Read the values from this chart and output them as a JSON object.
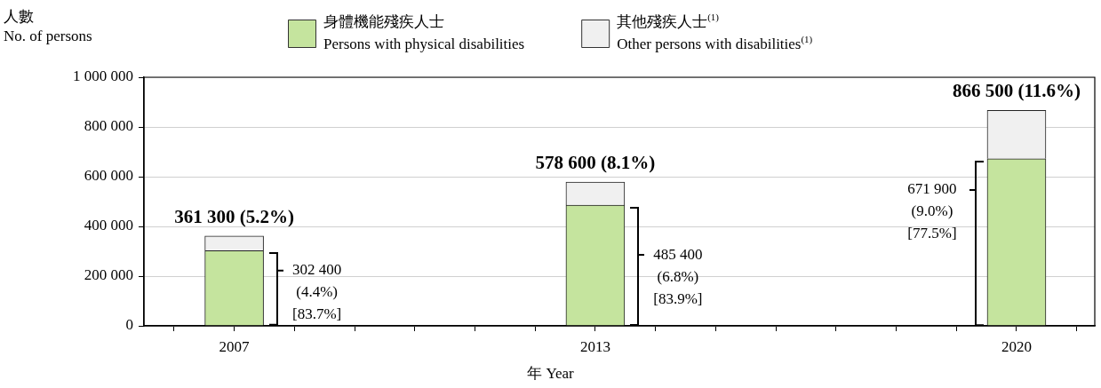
{
  "chart_data": {
    "type": "bar",
    "stacked": true,
    "ylabel": "人數\nNo. of persons",
    "xlabel": "年 Year",
    "x": [
      2007,
      2013,
      2020
    ],
    "series": [
      {
        "name": "身體機能殘疾人士\nPersons with physical disabilities",
        "color": "#c5e49e",
        "values": [
          302400,
          485400,
          671900
        ]
      },
      {
        "name": "其他殘疾人士$^{(1)}$\nOther persons with disabilities$^{(1)}$",
        "color": "#f0f0f0",
        "values": [
          58900,
          93200,
          194600
        ]
      }
    ],
    "totals": [
      "361 300 (5.2%)",
      "578 600 (8.1%)",
      "866 500 (11.6%)"
    ],
    "annotations": [
      "302 400\n(4.4%)\n[83.7%]",
      "485 400\n(6.8%)\n[83.9%]",
      "671 900\n(9.0%)\n[77.5%]"
    ],
    "xlim": [
      2005.5,
      2021.3
    ],
    "xticks": [
      {
        "value": 2006,
        "label": null
      },
      {
        "value": 2007,
        "label": "2007"
      },
      {
        "value": 2008,
        "label": null
      },
      {
        "value": 2009,
        "label": null
      },
      {
        "value": 2010,
        "label": null
      },
      {
        "value": 2011,
        "label": null
      },
      {
        "value": 2012,
        "label": null
      },
      {
        "value": 2013,
        "label": "2013"
      },
      {
        "value": 2014,
        "label": null
      },
      {
        "value": 2015,
        "label": null
      },
      {
        "value": 2016,
        "label": null
      },
      {
        "value": 2017,
        "label": null
      },
      {
        "value": 2018,
        "label": null
      },
      {
        "value": 2019,
        "label": null
      },
      {
        "value": 2020,
        "label": "2020"
      },
      {
        "value": 2021,
        "label": null
      }
    ],
    "ylim": [
      0,
      1000000
    ],
    "yticks": [
      0,
      {
        "value": 200000,
        "label": "200 000"
      },
      {
        "value": 400000,
        "label": "400 000"
      },
      {
        "value": 600000,
        "label": "600 000"
      },
      {
        "value": 800000,
        "label": "800 000"
      },
      {
        "value": 1000000,
        "label": "1 000 000"
      }
    ],
    "grid": "y",
    "legend": "top"
  }
}
